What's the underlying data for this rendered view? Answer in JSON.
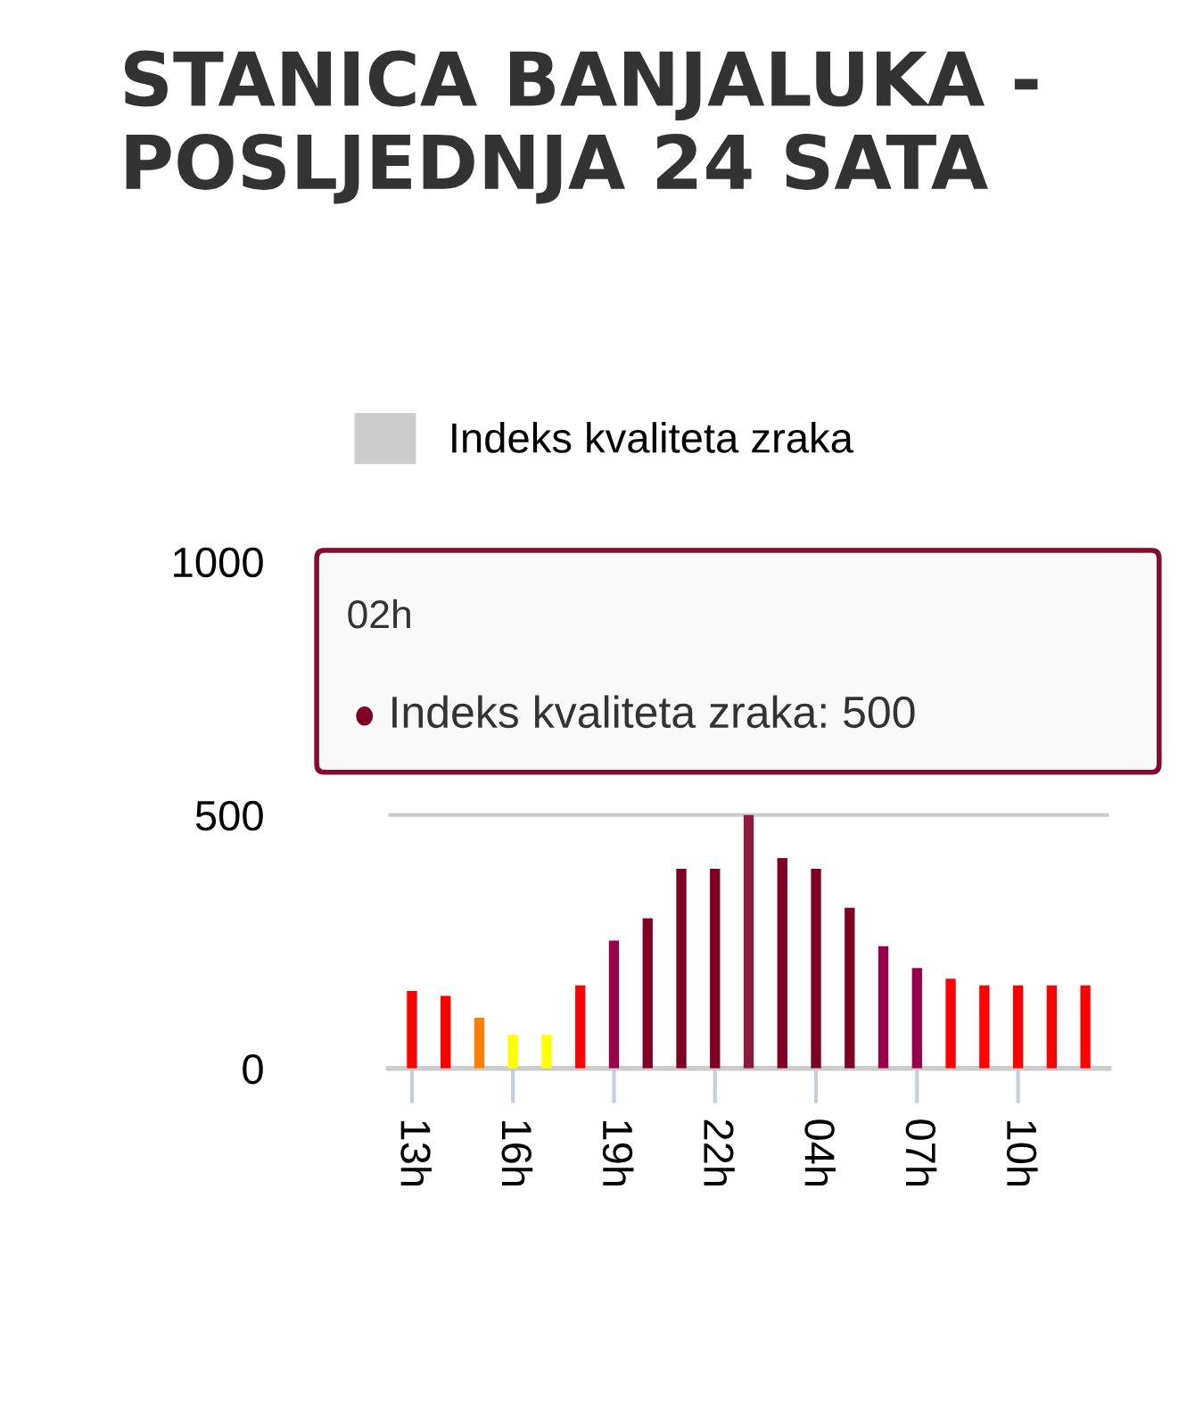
{
  "chart_data": {
    "type": "bar",
    "title": "STANICA BANJALUKA -\nPOSLJEDNJA 24 SATA",
    "categories": [
      "13h",
      null,
      null,
      "16h",
      null,
      null,
      "19h",
      null,
      null,
      "22h",
      null,
      null,
      "04h",
      null,
      null,
      "07h",
      null,
      null,
      "10h",
      null,
      null
    ],
    "series": [
      {
        "name": "Indeks kvaliteta zraka",
        "color": "#cccccc",
        "values": [
          153,
          143,
          100,
          66,
          66,
          164,
          252,
          296,
          394,
          394,
          500,
          415,
          394,
          317,
          241,
          198,
          177,
          164,
          164,
          164,
          164
        ],
        "colors": [
          "#ff0000",
          "#ff0000",
          "#ff7e00",
          "#ffff00",
          "#ffff00",
          "#ff0000",
          "#99004c",
          "#7e0023",
          "#7e0023",
          "#7e0023",
          "#8c1a3c",
          "#7e0023",
          "#7e0023",
          "#7e0023",
          "#99004c",
          "#99004c",
          "#ff0000",
          "#ff0000",
          "#ff0000",
          "#ff0000",
          "#ff0000"
        ]
      }
    ],
    "ylim": [
      0,
      1000
    ],
    "yticks": [
      0,
      500,
      1000
    ],
    "grid": "y",
    "legend": "top",
    "annotations": [
      "02h",
      "Indeks kvaliteta zraka: 500"
    ]
  }
}
